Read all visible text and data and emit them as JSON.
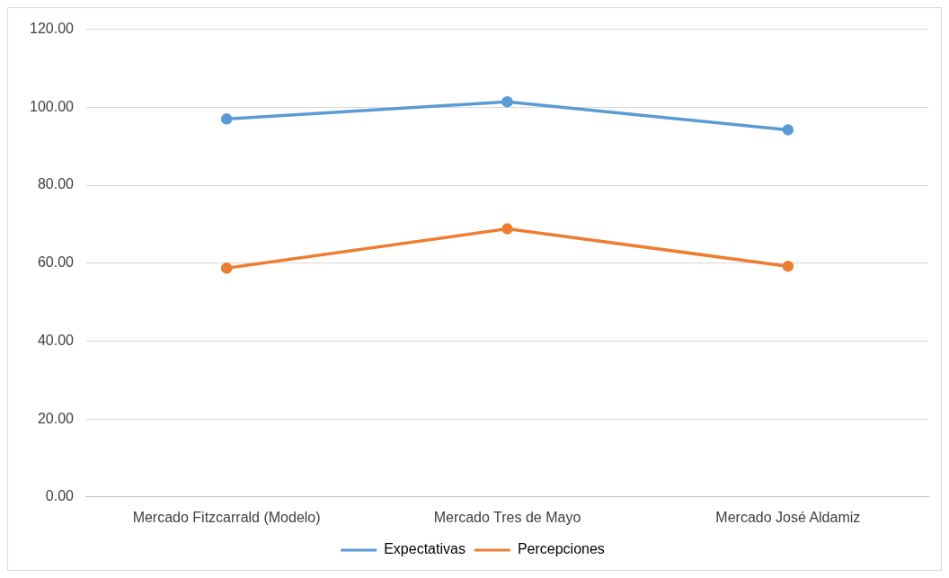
{
  "chart_data": {
    "type": "line",
    "categories": [
      "Mercado Fitzcarrald (Modelo)",
      "Mercado Tres de Mayo",
      "Mercado José Aldamiz"
    ],
    "series": [
      {
        "name": "Expectativas",
        "color": "#5b9bd5",
        "values": [
          97.0,
          101.4,
          94.2
        ]
      },
      {
        "name": "Percepciones",
        "color": "#ed7d31",
        "values": [
          58.7,
          68.8,
          59.2
        ]
      }
    ],
    "ylim": [
      0,
      120
    ],
    "yticks": [
      {
        "value": 0,
        "label": "0.00"
      },
      {
        "value": 20,
        "label": "20.00"
      },
      {
        "value": 40,
        "label": "40.00"
      },
      {
        "value": 60,
        "label": "60.00"
      },
      {
        "value": 80,
        "label": "80.00"
      },
      {
        "value": 100,
        "label": "100.00"
      },
      {
        "value": 120,
        "label": "120.00"
      }
    ],
    "grid": "y",
    "legend": "bottom",
    "marker": "circle",
    "line_style": "solid"
  }
}
